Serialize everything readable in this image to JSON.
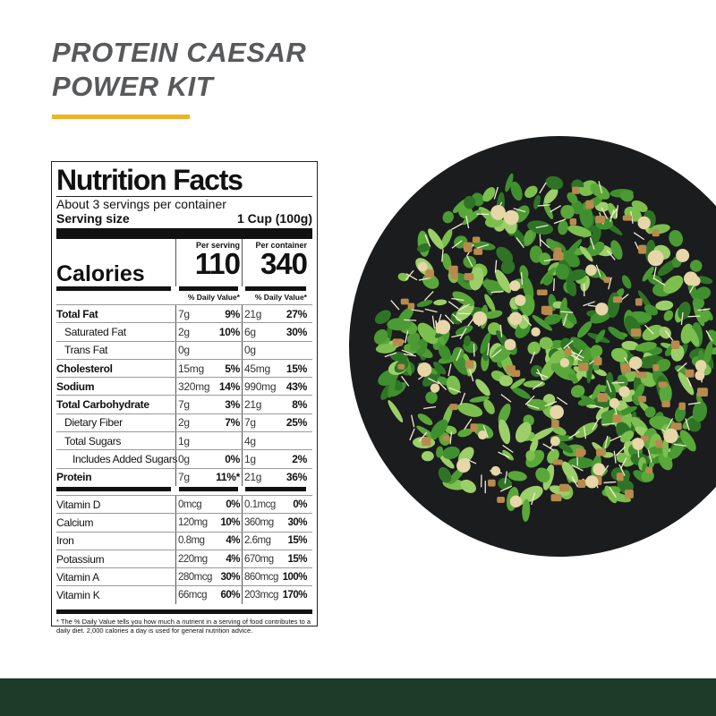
{
  "product": {
    "title_line1": "PROTEIN CAESAR",
    "title_line2": "POWER KIT",
    "accent_color": "#efb325",
    "footer_color": "#1d3b29"
  },
  "nutrition": {
    "title": "Nutrition Facts",
    "servings": "About 3 servings per container",
    "serving_size_label": "Serving size",
    "serving_size": "1 Cup (100g)",
    "per_serving_label": "Per serving",
    "per_container_label": "Per container",
    "calories_label": "Calories",
    "calories_serving": "110",
    "calories_container": "340",
    "dv_label": "% Daily Value*",
    "nutrients": [
      {
        "name": "Total Fat",
        "bold": true,
        "indent": 0,
        "s_amt": "7g",
        "s_dv": "9%",
        "c_amt": "21g",
        "c_dv": "27%"
      },
      {
        "name": "Saturated Fat",
        "indent": 1,
        "s_amt": "2g",
        "s_dv": "10%",
        "c_amt": "6g",
        "c_dv": "30%"
      },
      {
        "name": "Trans Fat",
        "indent": 1,
        "s_amt": "0g",
        "s_dv": "",
        "c_amt": "0g",
        "c_dv": ""
      },
      {
        "name": "Cholesterol",
        "bold": true,
        "indent": 0,
        "s_amt": "15mg",
        "s_dv": "5%",
        "c_amt": "45mg",
        "c_dv": "15%"
      },
      {
        "name": "Sodium",
        "bold": true,
        "indent": 0,
        "s_amt": "320mg",
        "s_dv": "14%",
        "c_amt": "990mg",
        "c_dv": "43%"
      },
      {
        "name": "Total Carbohydrate",
        "bold": true,
        "indent": 0,
        "s_amt": "7g",
        "s_dv": "3%",
        "c_amt": "21g",
        "c_dv": "8%"
      },
      {
        "name": "Dietary Fiber",
        "indent": 1,
        "s_amt": "2g",
        "s_dv": "7%",
        "c_amt": "7g",
        "c_dv": "25%"
      },
      {
        "name": "Total Sugars",
        "indent": 1,
        "s_amt": "1g",
        "s_dv": "",
        "c_amt": "4g",
        "c_dv": ""
      },
      {
        "name": "Includes Added Sugars",
        "indent": 2,
        "s_amt": "0g",
        "s_dv": "0%",
        "c_amt": "1g",
        "c_dv": "2%"
      },
      {
        "name": "Protein",
        "bold": true,
        "indent": 0,
        "s_amt": "7g",
        "s_dv": "11%*",
        "c_amt": "21g",
        "c_dv": "36%"
      }
    ],
    "vitamins": [
      {
        "name": "Vitamin D",
        "s_amt": "0mcg",
        "s_dv": "0%",
        "c_amt": "0.1mcg",
        "c_dv": "0%"
      },
      {
        "name": "Calcium",
        "s_amt": "120mg",
        "s_dv": "10%",
        "c_amt": "360mg",
        "c_dv": "30%"
      },
      {
        "name": "Iron",
        "s_amt": "0.8mg",
        "s_dv": "4%",
        "c_amt": "2.6mg",
        "c_dv": "15%"
      },
      {
        "name": "Potassium",
        "s_amt": "220mg",
        "s_dv": "4%",
        "c_amt": "670mg",
        "c_dv": "15%"
      },
      {
        "name": "Vitamin A",
        "s_amt": "280mcg",
        "s_dv": "30%",
        "c_amt": "860mcg",
        "c_dv": "100%"
      },
      {
        "name": "Vitamin K",
        "s_amt": "66mcg",
        "s_dv": "60%",
        "c_amt": "203mcg",
        "c_dv": "170%"
      }
    ],
    "footnote": "* The % Daily Value tells you how much a nutrient in a serving of food contributes to a daily diet. 2,000 calories a  day is used for general nutrition advice."
  }
}
